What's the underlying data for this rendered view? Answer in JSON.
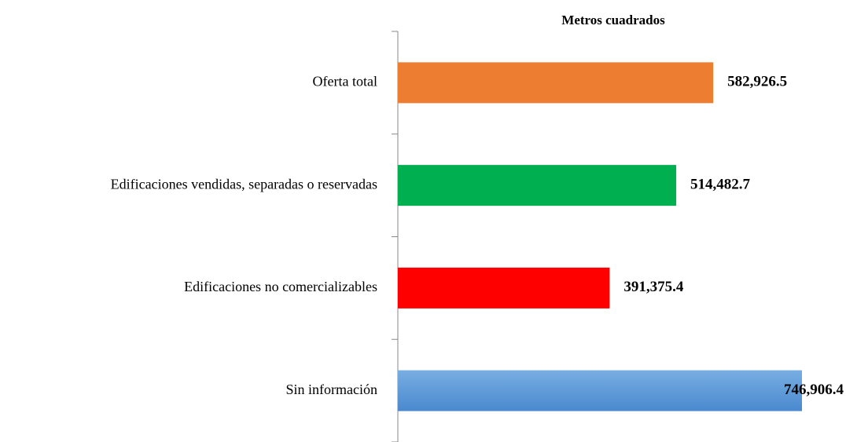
{
  "chart_data": {
    "type": "bar",
    "orientation": "horizontal",
    "title": "Metros cuadrados",
    "categories": [
      "Oferta total",
      "Edificaciones vendidas, separadas  o reservadas",
      "Edificaciones no comercializables",
      "Sin información"
    ],
    "values": [
      582926.5,
      514482.7,
      391375.4,
      746906.4
    ],
    "value_labels": [
      "582,926.5",
      "514,482.7",
      "391,375.4",
      "746,906.4"
    ],
    "colors": [
      "#ed7d31",
      "#00b050",
      "#ff0000",
      "#5b9bd5"
    ]
  }
}
